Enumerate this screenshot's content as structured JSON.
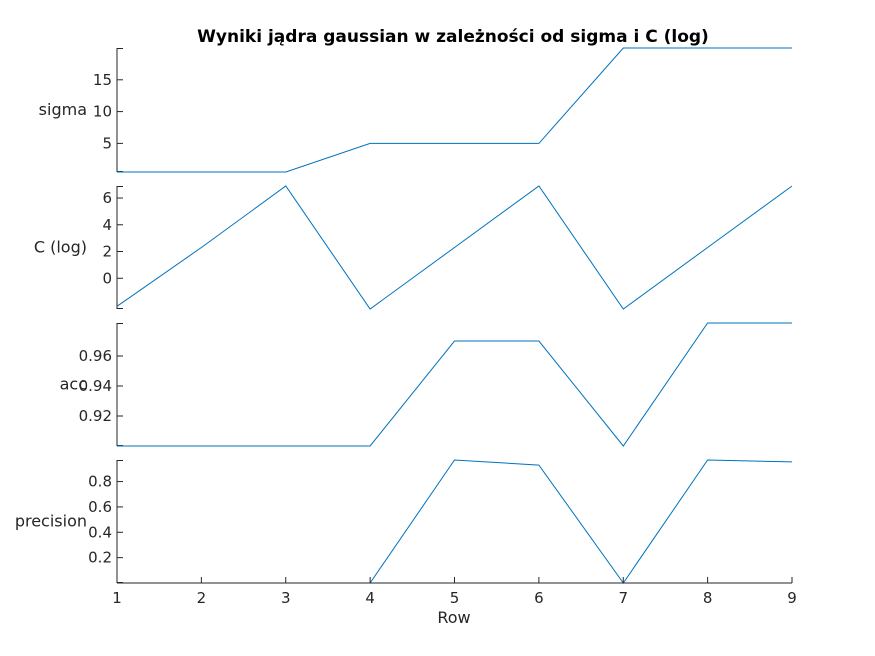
{
  "chart_data": {
    "type": "line",
    "title": "Wyniki jądra gaussian w zależności od sigma i C (log)",
    "xlabel": "Row",
    "x": [
      1,
      2,
      3,
      4,
      5,
      6,
      7,
      8,
      9
    ],
    "xlim": [
      1,
      9
    ],
    "xticks": [
      "1",
      "2",
      "3",
      "4",
      "5",
      "6",
      "7",
      "8",
      "9"
    ],
    "line_color": "#0072BD",
    "axis_color": "#262626",
    "panels": [
      {
        "ylabel": "sigma",
        "ylim": [
          0.5,
          20
        ],
        "yticks": [
          5,
          10,
          15
        ],
        "ytick_labels": [
          "5",
          "10",
          "15"
        ],
        "values": [
          0.5,
          0.5,
          0.5,
          5,
          5,
          5,
          20,
          20,
          20
        ]
      },
      {
        "ylabel": "C (log)",
        "ylim": [
          -2.3,
          6.9
        ],
        "yticks": [
          0,
          2,
          4,
          6
        ],
        "ytick_labels": [
          "0",
          "2",
          "4",
          "6"
        ],
        "values": [
          -2.1,
          2.3,
          6.9,
          -2.3,
          2.3,
          6.9,
          -2.3,
          2.3,
          6.9
        ]
      },
      {
        "ylabel": "acc",
        "ylim": [
          0.9,
          0.982
        ],
        "yticks": [
          0.92,
          0.94,
          0.96
        ],
        "ytick_labels": [
          "0.92",
          "0.94",
          "0.96"
        ],
        "values": [
          0.9,
          0.9,
          0.9,
          0.9,
          0.97,
          0.97,
          0.9,
          0.982,
          0.982
        ]
      },
      {
        "ylabel": "precision",
        "ylim": [
          0,
          0.97
        ],
        "yticks": [
          0.2,
          0.4,
          0.6,
          0.8
        ],
        "ytick_labels": [
          "0.2",
          "0.4",
          "0.6",
          "0.8"
        ],
        "values": [
          0,
          0,
          0,
          0,
          0.97,
          0.93,
          0,
          0.97,
          0.955
        ]
      }
    ]
  }
}
